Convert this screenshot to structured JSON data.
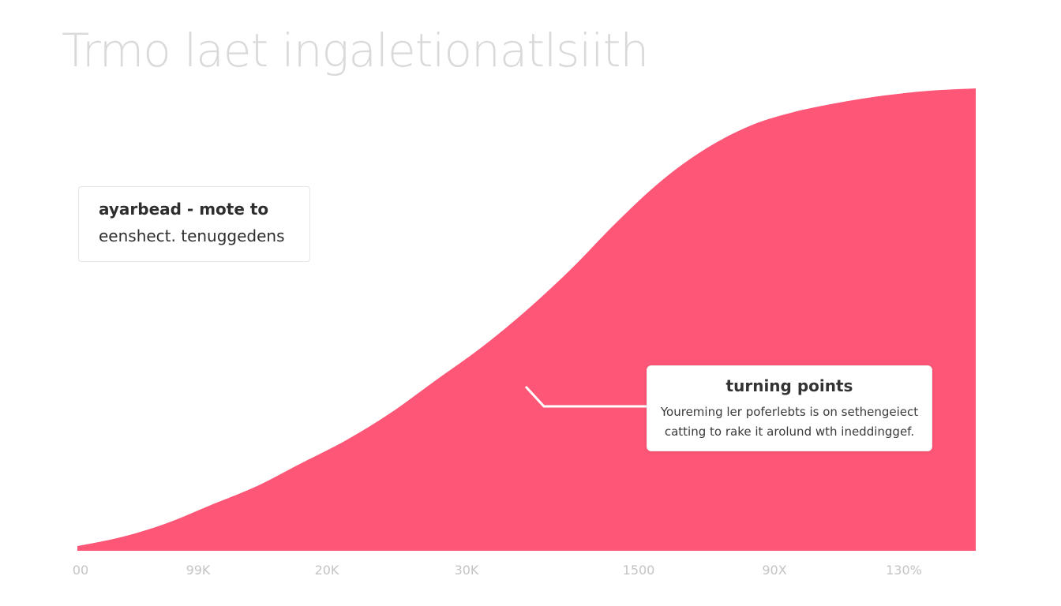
{
  "title": "Trmo laet ingaletionatlsiith",
  "note": {
    "title": "ayarbead - mote to",
    "subtitle": "eenshect. tenuggedens"
  },
  "callout": {
    "title": "turning points",
    "line1": "Youreming ler poferlebts is on sethengeiect",
    "line2": "catting to rake it arolund wth ineddinggef."
  },
  "colors": {
    "area": "#fd5677",
    "title": "#d9d9d9",
    "ticks": "#c4c4c4",
    "connector": "#ffffff"
  },
  "chart_data": {
    "type": "area",
    "title": "Trmo laet ingaletionatlsiith",
    "xlabel": "",
    "ylabel": "",
    "grid": false,
    "legend": "none",
    "x_tick_labels": [
      "00",
      "99K",
      "20K",
      "30K",
      "1500",
      "90X",
      "130%"
    ],
    "ylim": [
      0,
      100
    ],
    "series": [
      {
        "x": [
          0,
          0.05,
          0.1,
          0.15,
          0.2,
          0.25,
          0.3,
          0.35,
          0.4,
          0.45,
          0.5,
          0.55,
          0.6,
          0.65,
          0.7,
          0.75,
          0.8,
          0.85,
          0.9,
          0.95,
          1.0
        ],
        "values": [
          1,
          3,
          6,
          10,
          14,
          19,
          24,
          30,
          37,
          44,
          52,
          61,
          71,
          80,
          87,
          92,
          95,
          97,
          98.5,
          99.5,
          100
        ]
      }
    ],
    "annotation": {
      "label": "turning points",
      "x": 0.5,
      "y": 36
    }
  }
}
